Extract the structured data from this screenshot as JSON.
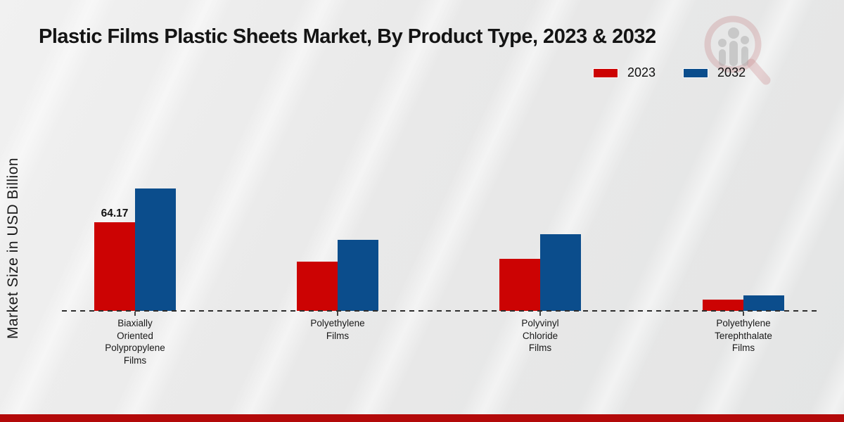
{
  "page": {
    "title": "Plastic Films Plastic Sheets Market, By Product Type, 2023 & 2032",
    "ylabel": "Market Size in USD Billion"
  },
  "legend": [
    {
      "label": "2023",
      "color": "#cc0303"
    },
    {
      "label": "2032",
      "color": "#0b4d8c"
    }
  ],
  "colors": {
    "series_2023": "#cc0303",
    "series_2032": "#0b4d8c",
    "footer_stripe": "#b30909",
    "baseline": "#2e2e2e"
  },
  "icons": {
    "watermark": "magnifier-bar-chart-logo"
  },
  "chart_data": {
    "type": "bar",
    "title": "Plastic Films Plastic Sheets Market, By Product Type, 2023 & 2032",
    "xlabel": "",
    "ylabel": "Market Size in USD Billion",
    "categories": [
      "Biaxially\nOriented\nPolypropylene\nFilms",
      "Polyethylene\nFilms",
      "Polyvinyl\nChloride\nFilms",
      "Polyethylene\nTerephthalate\nFilms"
    ],
    "series": [
      {
        "name": "2023",
        "color": "#cc0303",
        "values": [
          64.17,
          35.5,
          37.8,
          8.0
        ]
      },
      {
        "name": "2032",
        "color": "#0b4d8c",
        "values": [
          88.6,
          51.5,
          55.6,
          11.2
        ]
      }
    ],
    "data_labels": [
      {
        "series": "2023",
        "category_index": 0,
        "text": "64.17"
      }
    ],
    "ylim": [
      0,
      100
    ],
    "grid": false,
    "axis_line": "dashed-zero-baseline",
    "legend_position": "top-right"
  }
}
